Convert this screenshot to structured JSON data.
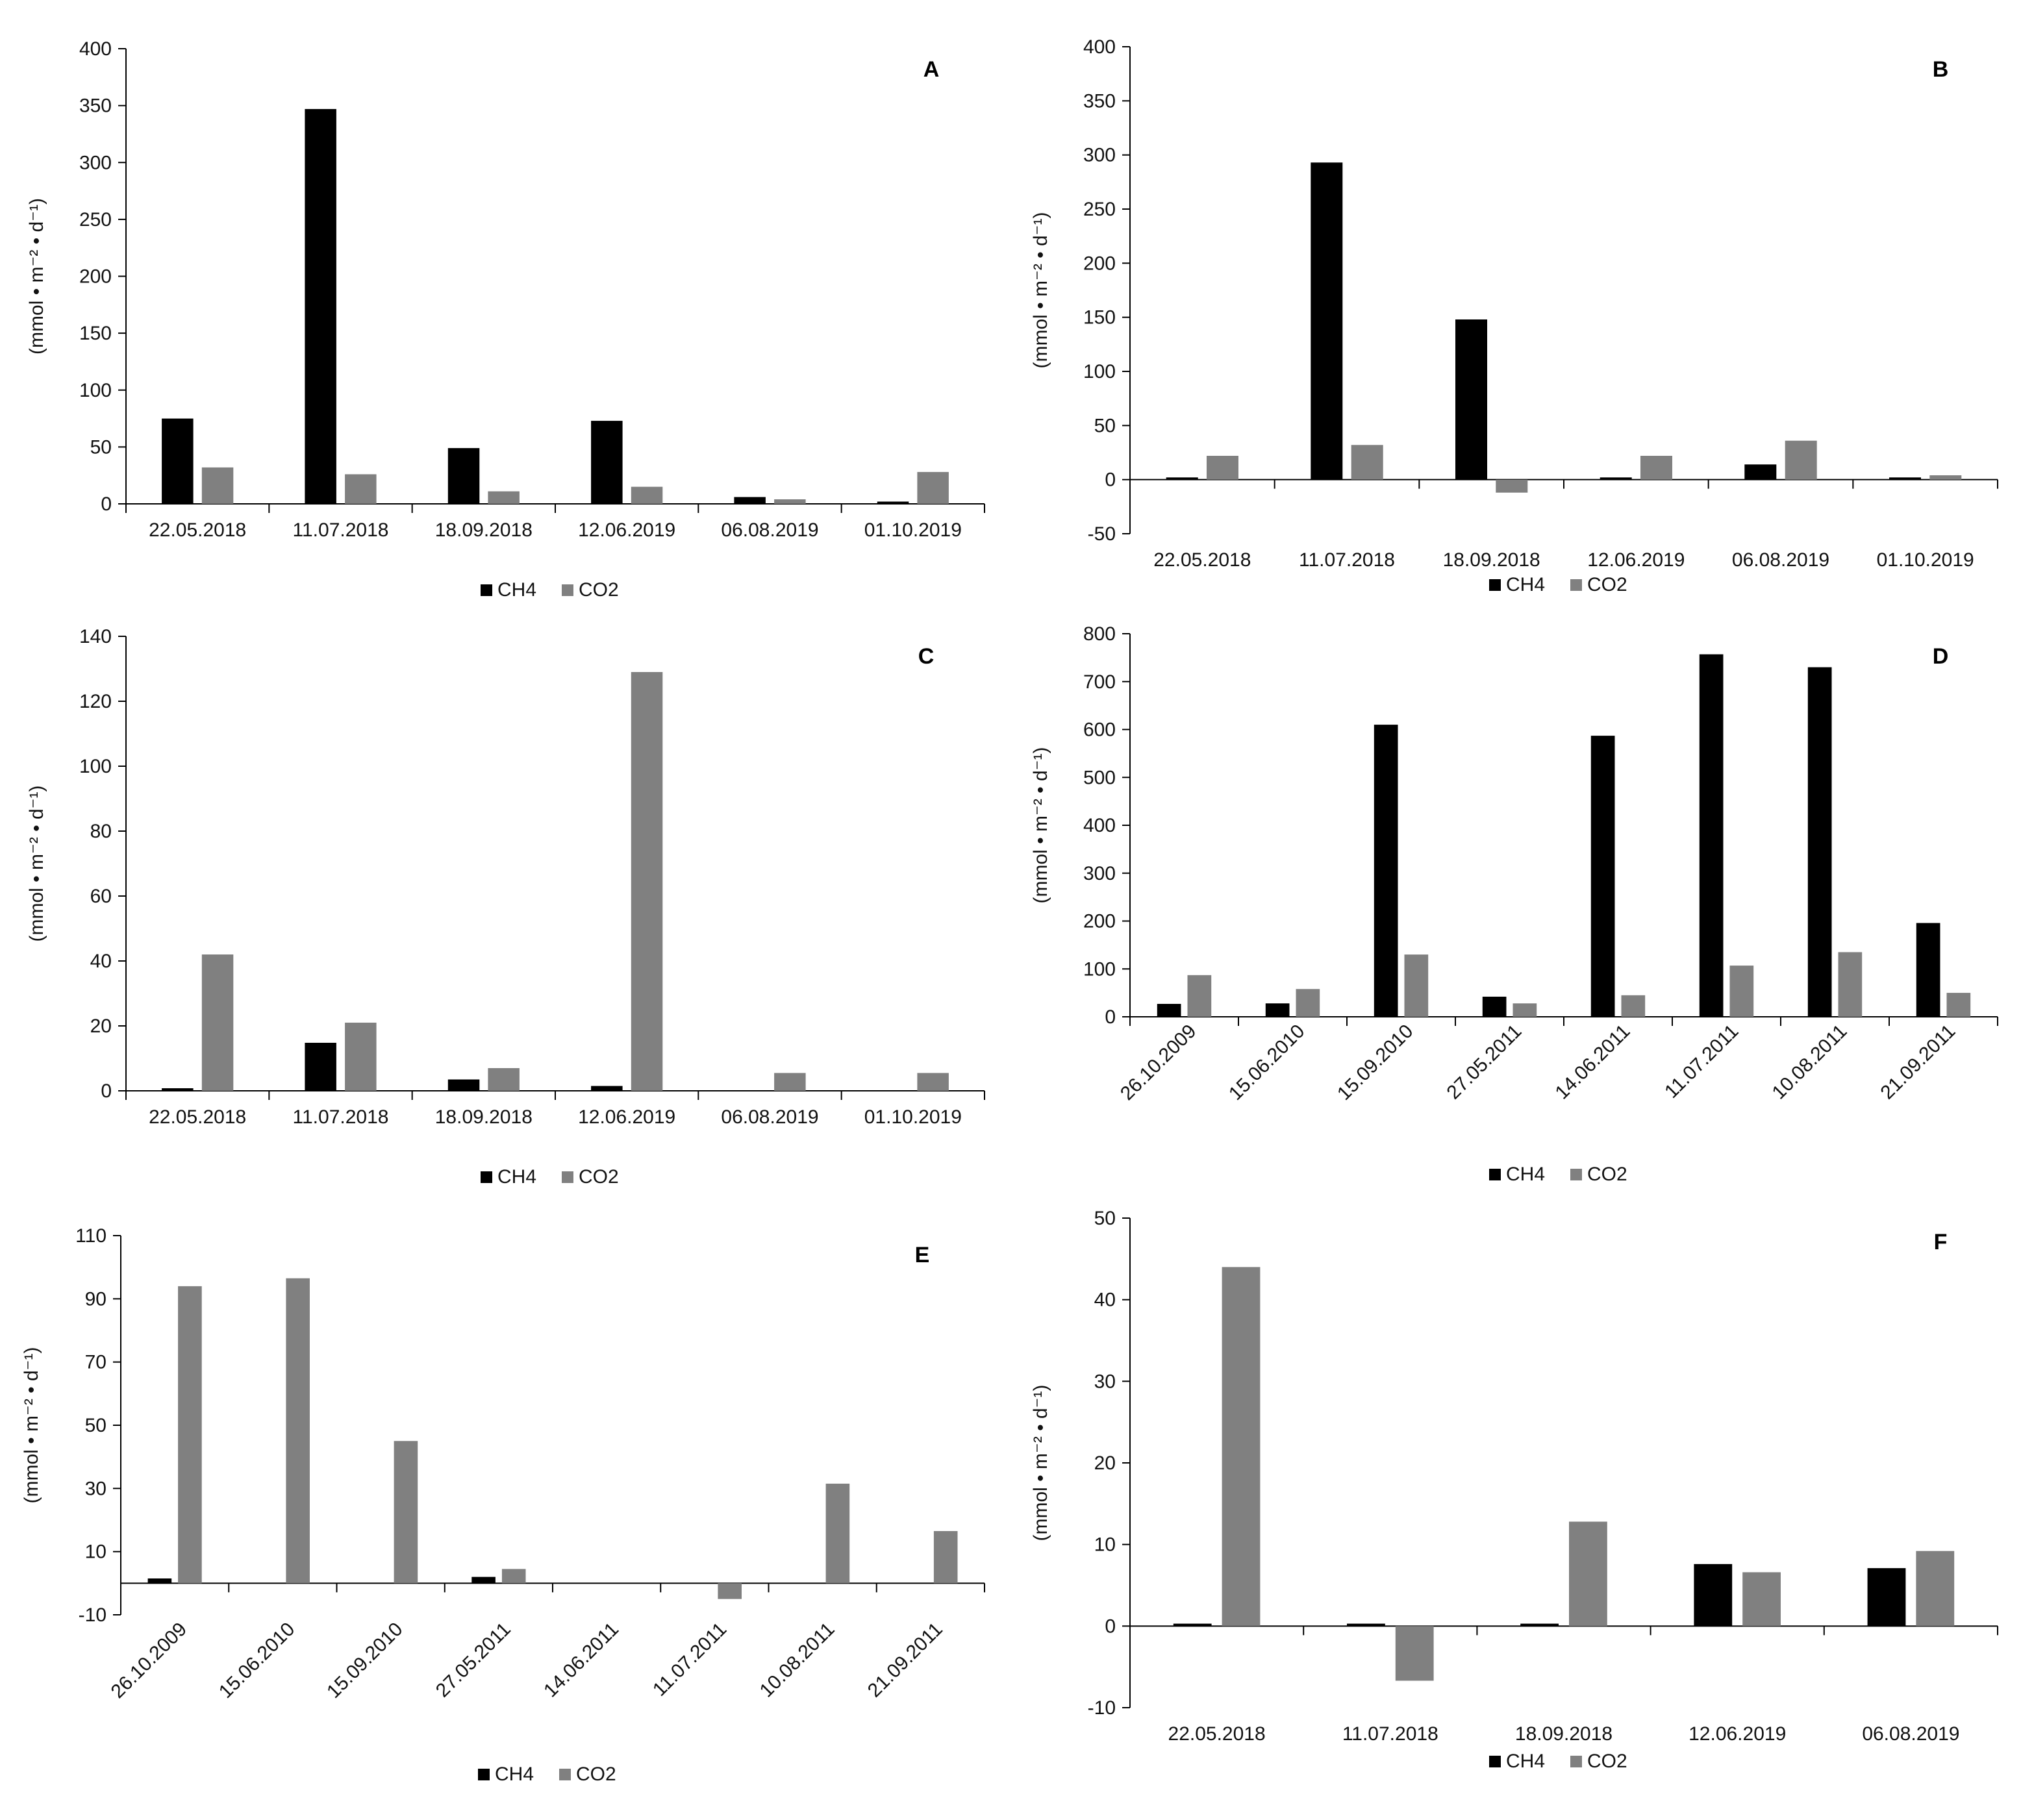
{
  "figure": {
    "y_axis_label": "(mmol • m⁻² • d⁻¹)",
    "series_colors": {
      "CH4": "#000000",
      "CO2": "#808080"
    }
  },
  "chart_data": [
    {
      "id": "A",
      "type": "bar",
      "title": "A",
      "categories": [
        "22.05.2018",
        "11.07.2018",
        "18.09.2018",
        "12.06.2019",
        "06.08.2019",
        "01.10.2019"
      ],
      "series": [
        {
          "name": "CH4",
          "values": [
            75,
            347,
            49,
            73,
            6,
            2
          ]
        },
        {
          "name": "CO2",
          "values": [
            32,
            26,
            11,
            15,
            4,
            28
          ]
        }
      ],
      "ylabel": "(mmol • m⁻² • d⁻¹)",
      "xlabel": "",
      "ylim": [
        0,
        400
      ],
      "yticks": [
        0,
        50,
        100,
        150,
        200,
        250,
        300,
        350,
        400
      ],
      "rotate_labels": false,
      "legend": "bottom-center"
    },
    {
      "id": "B",
      "type": "bar",
      "title": "B",
      "categories": [
        "22.05.2018",
        "11.07.2018",
        "18.09.2018",
        "12.06.2019",
        "06.08.2019",
        "01.10.2019"
      ],
      "series": [
        {
          "name": "CH4",
          "values": [
            2,
            293,
            148,
            2,
            14,
            2
          ]
        },
        {
          "name": "CO2",
          "values": [
            22,
            32,
            -12,
            22,
            36,
            4
          ]
        }
      ],
      "ylabel": "(mmol • m⁻² • d⁻¹)",
      "xlabel": "",
      "ylim": [
        -50,
        400
      ],
      "yticks": [
        -50,
        0,
        50,
        100,
        150,
        200,
        250,
        300,
        350,
        400
      ],
      "rotate_labels": false,
      "legend": "bottom-center"
    },
    {
      "id": "C",
      "type": "bar",
      "title": "C",
      "categories": [
        "22.05.2018",
        "11.07.2018",
        "18.09.2018",
        "12.06.2019",
        "06.08.2019",
        "01.10.2019"
      ],
      "series": [
        {
          "name": "CH4",
          "values": [
            0.8,
            14.8,
            3.5,
            1.5,
            0,
            0
          ]
        },
        {
          "name": "CO2",
          "values": [
            42,
            21,
            7,
            129,
            5.5,
            5.5
          ]
        }
      ],
      "ylabel": "(mmol • m⁻² • d⁻¹)",
      "xlabel": "",
      "ylim": [
        0,
        140
      ],
      "yticks": [
        0,
        20,
        40,
        60,
        80,
        100,
        120,
        140
      ],
      "rotate_labels": false,
      "legend": "bottom-center"
    },
    {
      "id": "D",
      "type": "bar",
      "title": "D",
      "categories": [
        "26.10.2009",
        "15.06.2010",
        "15.09.2010",
        "27.05.2011",
        "14.06.2011",
        "11.07.2011",
        "10.08.2011",
        "21.09.2011"
      ],
      "series": [
        {
          "name": "CH4",
          "values": [
            27,
            28,
            610,
            42,
            587,
            757,
            730,
            196
          ]
        },
        {
          "name": "CO2",
          "values": [
            87,
            58,
            130,
            28,
            45,
            107,
            135,
            50
          ]
        }
      ],
      "ylabel": "(mmol • m⁻² • d⁻¹)",
      "xlabel": "",
      "ylim": [
        0,
        800
      ],
      "yticks": [
        0,
        100,
        200,
        300,
        400,
        500,
        600,
        700,
        800
      ],
      "rotate_labels": true,
      "legend": "bottom-center"
    },
    {
      "id": "E",
      "type": "bar",
      "title": "E",
      "categories": [
        "26.10.2009",
        "15.06.2010",
        "15.09.2010",
        "27.05.2011",
        "14.06.2011",
        "11.07.2011",
        "10.08.2011",
        "21.09.2011"
      ],
      "series": [
        {
          "name": "CH4",
          "values": [
            1.5,
            0,
            0,
            2,
            0,
            0,
            0,
            0
          ]
        },
        {
          "name": "CO2",
          "values": [
            94,
            96.5,
            45,
            4.5,
            0,
            -5,
            31.5,
            16.5
          ]
        }
      ],
      "ylabel": "(mmol • m⁻² • d⁻¹)",
      "xlabel": "",
      "ylim": [
        -10,
        110
      ],
      "yticks": [
        -10,
        10,
        30,
        50,
        70,
        90,
        110
      ],
      "rotate_labels": true,
      "legend": "bottom-center"
    },
    {
      "id": "F",
      "type": "bar",
      "title": "F",
      "categories": [
        "22.05.2018",
        "11.07.2018",
        "18.09.2018",
        "12.06.2019",
        "06.08.2019"
      ],
      "series": [
        {
          "name": "CH4",
          "values": [
            0.3,
            0.3,
            0.3,
            7.6,
            7.1
          ]
        },
        {
          "name": "CO2",
          "values": [
            44,
            -6.7,
            12.8,
            6.6,
            9.2
          ]
        }
      ],
      "ylabel": "(mmol • m⁻² • d⁻¹)",
      "xlabel": "",
      "ylim": [
        -10,
        50
      ],
      "yticks": [
        -10,
        0,
        10,
        20,
        30,
        40,
        50
      ],
      "rotate_labels": false,
      "legend": "bottom-center"
    }
  ]
}
